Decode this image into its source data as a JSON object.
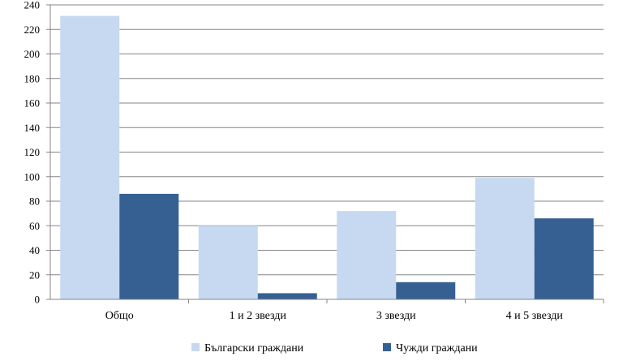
{
  "chart_data": {
    "type": "bar",
    "categories": [
      "Общо",
      "1 и 2 звезди",
      "3 звезди",
      "4 и 5 звезди"
    ],
    "series": [
      {
        "name": "Български граждани",
        "values": [
          231,
          60,
          72,
          99
        ],
        "color": "#c6d9f1"
      },
      {
        "name": "Чужди граждани",
        "values": [
          86,
          5,
          14,
          66
        ],
        "color": "#366092"
      }
    ],
    "ylim": [
      0,
      240
    ],
    "yticks": [
      0,
      20,
      40,
      60,
      80,
      100,
      120,
      140,
      160,
      180,
      200,
      220,
      240
    ],
    "grid": true,
    "legend_position": "bottom",
    "title": "",
    "xlabel": "",
    "ylabel": ""
  }
}
